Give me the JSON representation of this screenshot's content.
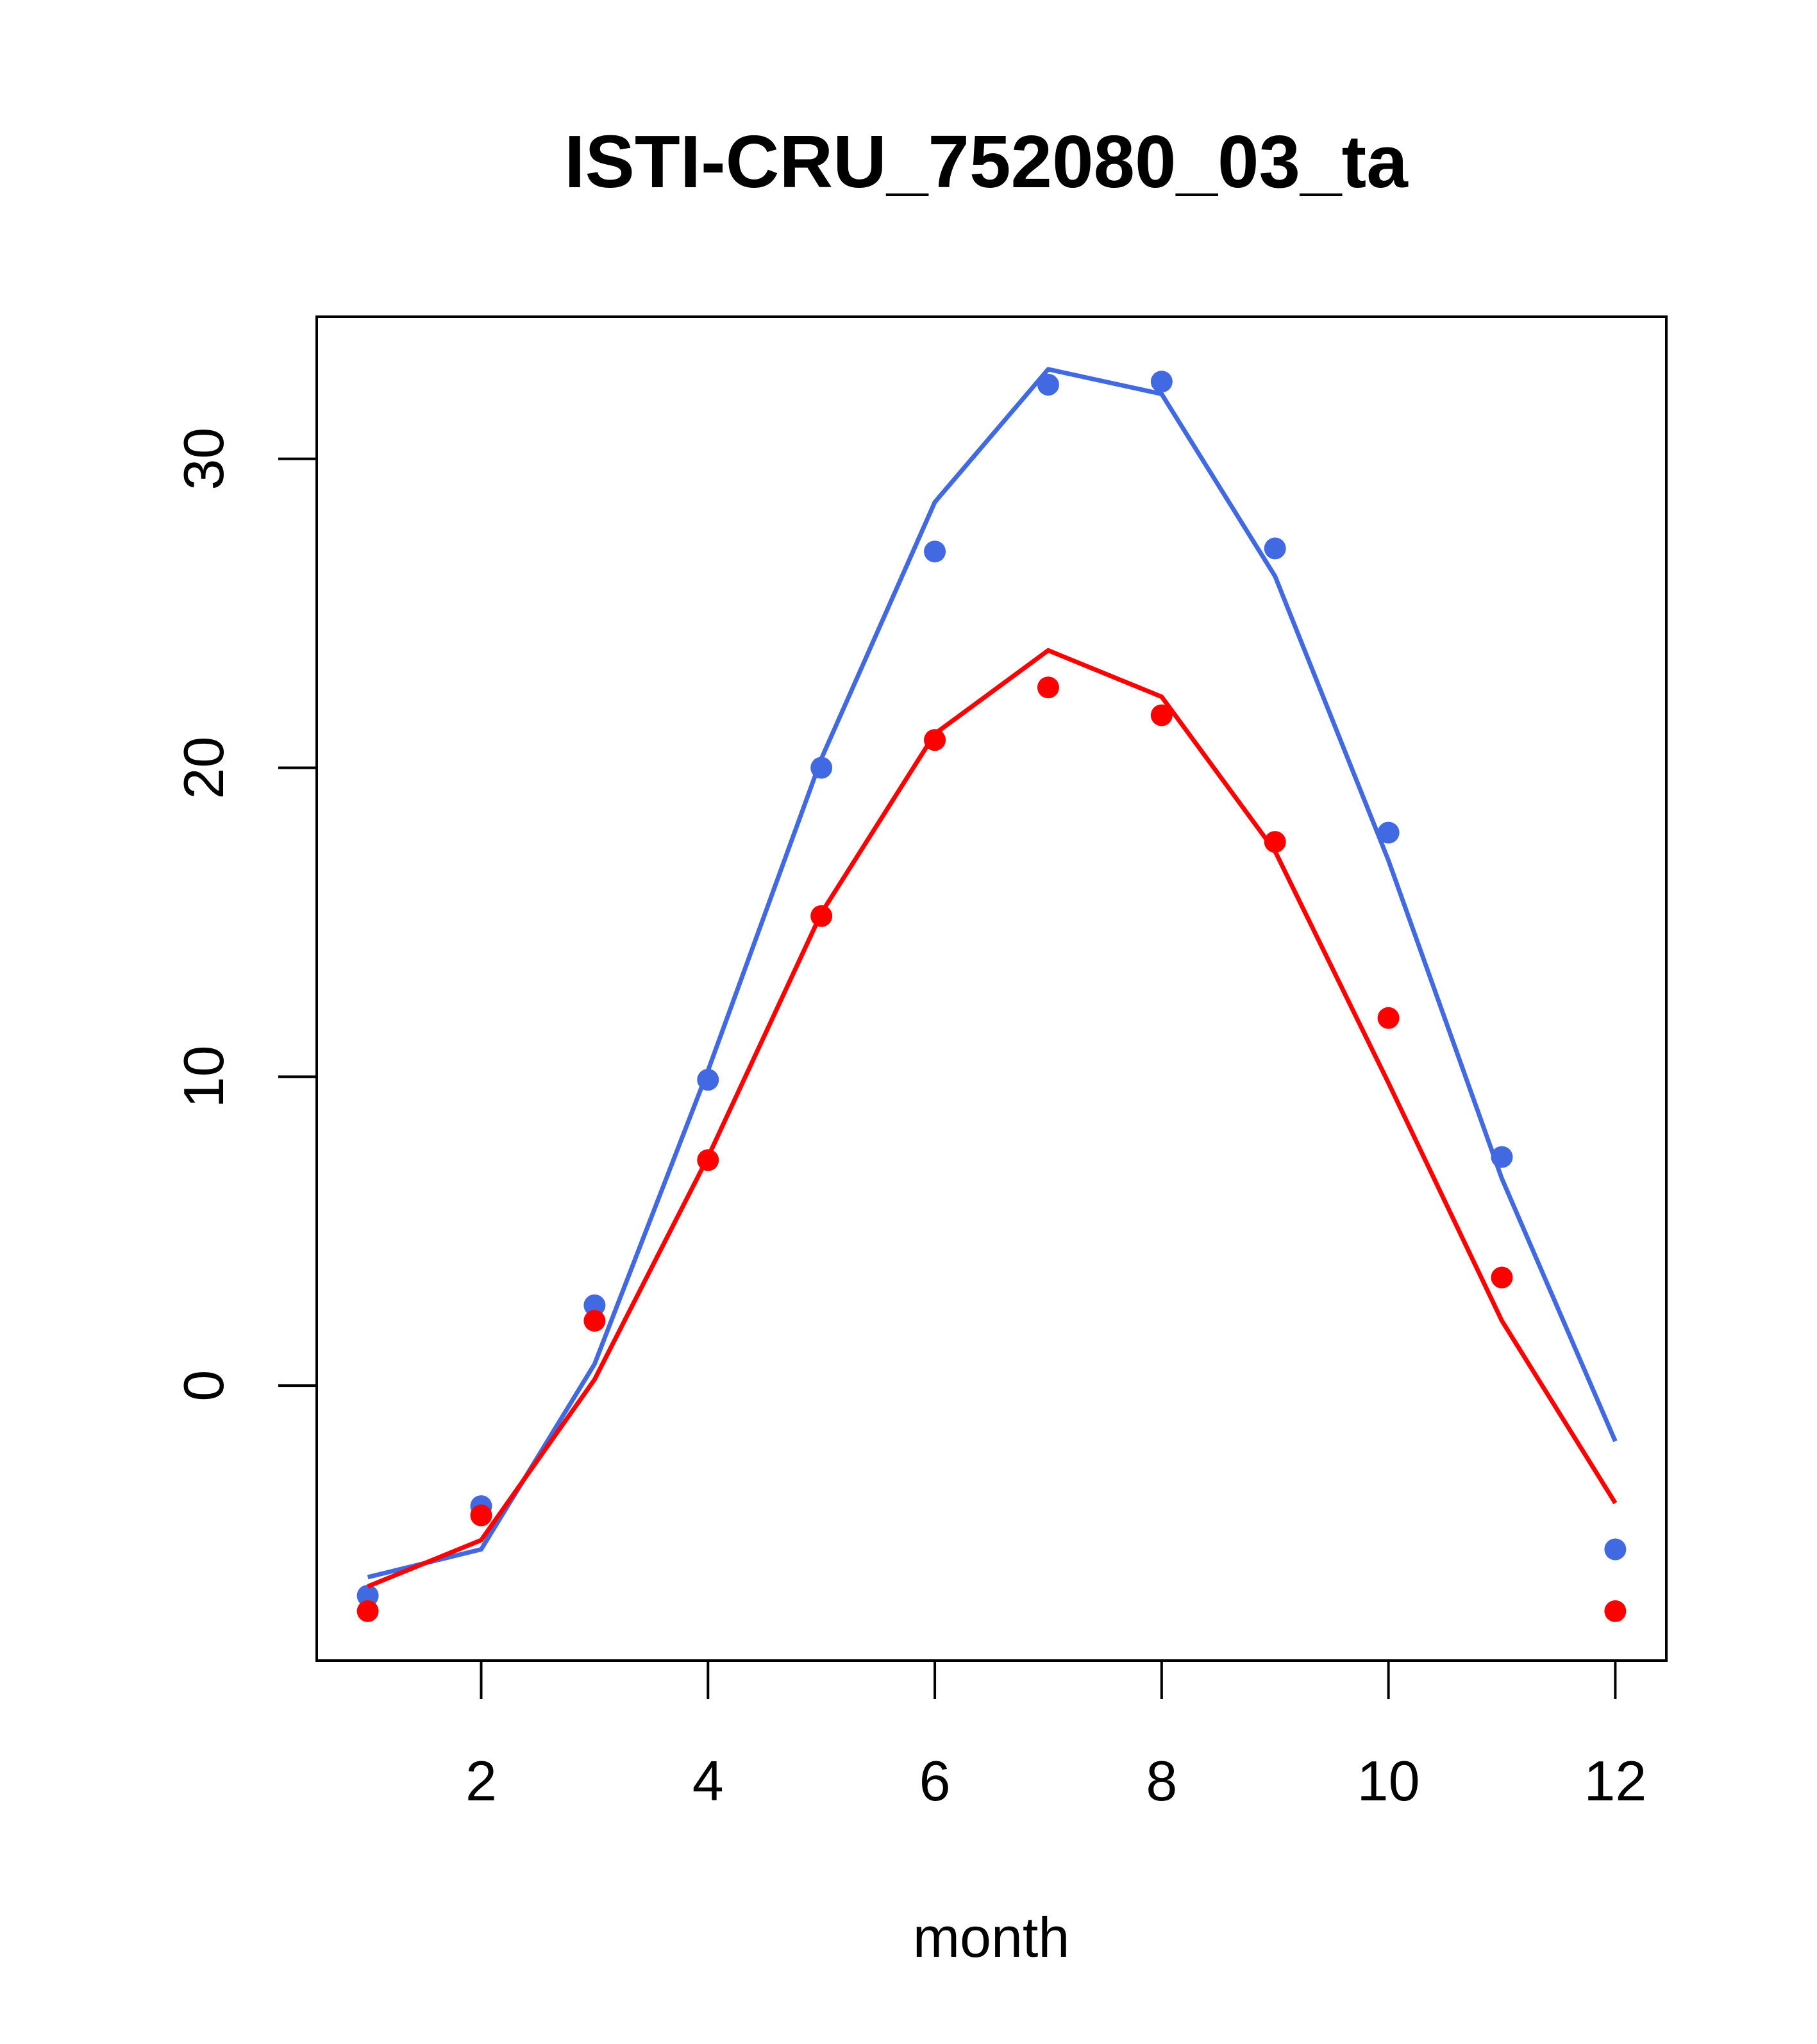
{
  "chart_data": {
    "type": "line",
    "title": "ISTI-CRU_752080_03_ta",
    "xlabel": "month",
    "ylabel": "",
    "xlim": [
      0.55,
      12.45
    ],
    "ylim": [
      -8.9,
      34.6
    ],
    "x_ticks": [
      2,
      4,
      6,
      8,
      10,
      12
    ],
    "y_ticks": [
      0,
      10,
      20,
      30
    ],
    "grid": false,
    "x": [
      1,
      2,
      3,
      4,
      5,
      6,
      7,
      8,
      9,
      10,
      11,
      12
    ],
    "series": [
      {
        "color": "#4169e1",
        "points": [
          -6.8,
          -3.9,
          2.6,
          9.9,
          20.0,
          27.0,
          32.4,
          32.5,
          27.1,
          17.9,
          7.4,
          -5.3
        ],
        "line": [
          -6.2,
          -5.3,
          0.7,
          10.2,
          20.3,
          28.6,
          32.9,
          32.1,
          26.2,
          17.0,
          6.7,
          -1.8
        ]
      },
      {
        "color": "#ff0000",
        "points": [
          -7.3,
          -4.2,
          2.1,
          7.3,
          15.2,
          20.9,
          22.6,
          21.7,
          17.6,
          11.9,
          3.5,
          -7.3
        ],
        "line": [
          -6.5,
          -5.0,
          0.2,
          7.4,
          15.3,
          21.1,
          23.8,
          22.3,
          17.3,
          9.8,
          2.1,
          -3.8
        ]
      }
    ]
  }
}
